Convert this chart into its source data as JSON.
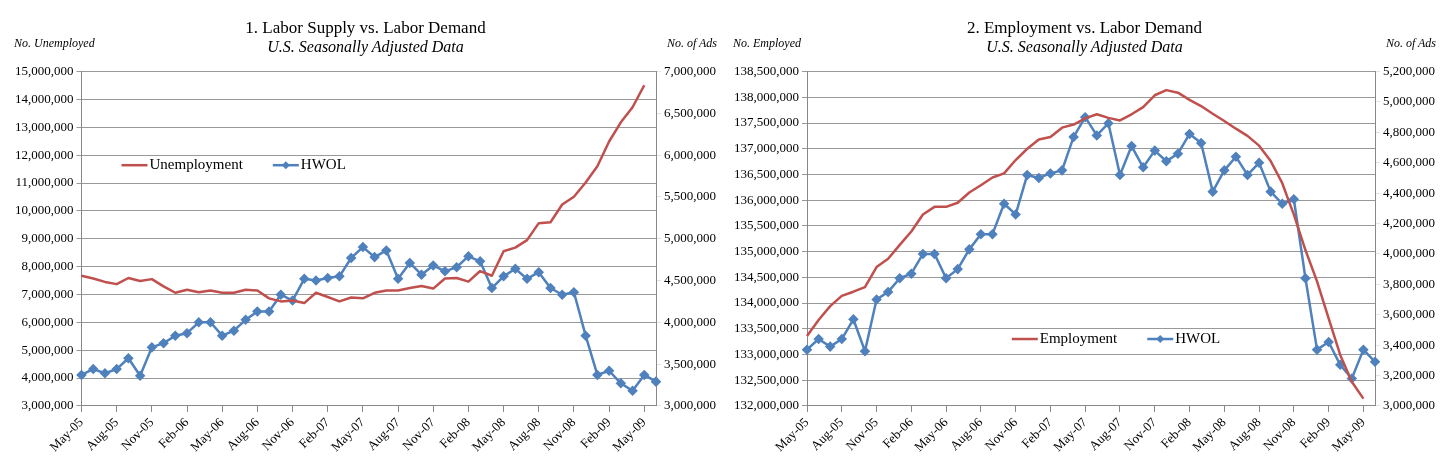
{
  "chart_data": [
    {
      "type": "line",
      "title": "1. Labor Supply vs. Labor Demand",
      "subtitle": "U.S. Seasonally Adjusted Data",
      "ylabel": "No. Unemployed",
      "y2label": "No. of Ads",
      "categories": [
        "May-05",
        null,
        null,
        "Aug-05",
        null,
        null,
        "Nov-05",
        null,
        null,
        "Feb-06",
        null,
        null,
        "May-06",
        null,
        null,
        "Aug-06",
        null,
        null,
        "Nov-06",
        null,
        null,
        "Feb-07",
        null,
        null,
        "May-07",
        null,
        null,
        "Aug-07",
        null,
        null,
        "Nov-07",
        null,
        null,
        "Feb-08",
        null,
        null,
        "May-08",
        null,
        null,
        "Aug-08",
        null,
        null,
        "Nov-08",
        null,
        null,
        "Feb-09",
        null,
        null,
        "May-09",
        null
      ],
      "series": [
        {
          "name": "Unemployment",
          "color": "#c0504d",
          "marker": "none",
          "values": [
            7670000,
            7570000,
            7450000,
            7370000,
            7590000,
            7480000,
            7550000,
            7290000,
            7060000,
            7170000,
            7080000,
            7140000,
            7060000,
            7060000,
            7170000,
            7140000,
            6860000,
            6750000,
            6780000,
            6690000,
            7060000,
            6910000,
            6750000,
            6890000,
            6860000,
            7060000,
            7140000,
            7140000,
            7230000,
            7300000,
            7210000,
            7570000,
            7590000,
            7460000,
            7840000,
            7670000,
            8550000,
            8680000,
            8950000,
            9560000,
            9590000,
            10230000,
            10510000,
            11020000,
            11600000,
            12490000,
            13180000,
            13720000,
            14510000,
            null
          ]
        },
        {
          "name": "HWOL",
          "color": "#4f81bd",
          "marker": "diamond",
          "axis": "y2",
          "values": [
            3370000,
            3440000,
            3390000,
            3440000,
            3570000,
            3360000,
            3700000,
            3750000,
            3840000,
            3870000,
            4000000,
            4000000,
            3840000,
            3900000,
            4030000,
            4130000,
            4130000,
            4330000,
            4260000,
            4520000,
            4500000,
            4530000,
            4550000,
            4770000,
            4900000,
            4780000,
            4860000,
            4520000,
            4710000,
            4570000,
            4680000,
            4610000,
            4660000,
            4790000,
            4730000,
            4410000,
            4550000,
            4640000,
            4520000,
            4600000,
            4410000,
            4330000,
            4360000,
            3840000,
            3370000,
            3420000,
            3270000,
            3180000,
            3370000,
            3290000
          ]
        }
      ],
      "ylim": [
        3000000,
        15000000
      ],
      "yticks": [
        {
          "value": 3000000,
          "label": "3,000,000"
        },
        {
          "value": 4000000,
          "label": "4,000,000"
        },
        {
          "value": 5000000,
          "label": "5,000,000"
        },
        {
          "value": 6000000,
          "label": "6,000,000"
        },
        {
          "value": 7000000,
          "label": "7,000,000"
        },
        {
          "value": 8000000,
          "label": "8,000,000"
        },
        {
          "value": 9000000,
          "label": "9,000,000"
        },
        {
          "value": 10000000,
          "label": "10,000,000"
        },
        {
          "value": 11000000,
          "label": "11,000,000"
        },
        {
          "value": 12000000,
          "label": "12,000,000"
        },
        {
          "value": 13000000,
          "label": "13,000,000"
        },
        {
          "value": 14000000,
          "label": "14,000,000"
        },
        {
          "value": 15000000,
          "label": "15,000,000"
        }
      ],
      "y2lim": [
        3000000,
        7000000
      ],
      "y2ticks": [
        {
          "value": 3000000,
          "label": "3,000,000"
        },
        {
          "value": 3500000,
          "label": "3,500,000"
        },
        {
          "value": 4000000,
          "label": "4,000,000"
        },
        {
          "value": 4500000,
          "label": "4,500,000"
        },
        {
          "value": 5000000,
          "label": "5,000,000"
        },
        {
          "value": 5500000,
          "label": "5,500,000"
        },
        {
          "value": 6000000,
          "label": "6,000,000"
        },
        {
          "value": 6500000,
          "label": "6,500,000"
        },
        {
          "value": 7000000,
          "label": "7,000,000"
        }
      ],
      "grid": "y",
      "legend": "left",
      "line_style": "solid"
    },
    {
      "type": "line",
      "title": "2. Employment vs. Labor Demand",
      "subtitle": "U.S. Seasonally Adjusted Data",
      "ylabel": "No. Employed",
      "y2label": "No. of Ads",
      "categories": [
        "May-05",
        null,
        null,
        "Aug-05",
        null,
        null,
        "Nov-05",
        null,
        null,
        "Feb-06",
        null,
        null,
        "May-06",
        null,
        null,
        "Aug-06",
        null,
        null,
        "Nov-06",
        null,
        null,
        "Feb-07",
        null,
        null,
        "May-07",
        null,
        null,
        "Aug-07",
        null,
        null,
        "Nov-07",
        null,
        null,
        "Feb-08",
        null,
        null,
        "May-08",
        null,
        null,
        "Aug-08",
        null,
        null,
        "Nov-08",
        null,
        null,
        "Feb-09",
        null,
        null,
        "May-09",
        null
      ],
      "series": [
        {
          "name": "Employment",
          "color": "#c0504d",
          "marker": "none",
          "values": [
            133360000,
            133670000,
            133940000,
            134140000,
            134220000,
            134310000,
            134700000,
            134860000,
            135130000,
            135390000,
            135720000,
            135870000,
            135870000,
            135950000,
            136150000,
            136290000,
            136440000,
            136520000,
            136780000,
            137000000,
            137180000,
            137230000,
            137410000,
            137470000,
            137590000,
            137670000,
            137600000,
            137550000,
            137670000,
            137810000,
            138040000,
            138140000,
            138090000,
            137950000,
            137830000,
            137680000,
            137540000,
            137390000,
            137250000,
            137060000,
            136760000,
            136330000,
            135720000,
            135030000,
            134420000,
            133700000,
            132990000,
            132470000,
            132140000,
            null
          ]
        },
        {
          "name": "HWOL",
          "color": "#4f81bd",
          "marker": "diamond",
          "axis": "y2",
          "values": [
            3370000,
            3440000,
            3390000,
            3440000,
            3570000,
            3360000,
            3700000,
            3750000,
            3840000,
            3870000,
            4000000,
            4000000,
            3840000,
            3900000,
            4030000,
            4130000,
            4130000,
            4330000,
            4260000,
            4520000,
            4500000,
            4530000,
            4550000,
            4770000,
            4900000,
            4780000,
            4860000,
            4520000,
            4710000,
            4570000,
            4680000,
            4610000,
            4660000,
            4790000,
            4730000,
            4410000,
            4550000,
            4640000,
            4520000,
            4600000,
            4410000,
            4330000,
            4360000,
            3840000,
            3370000,
            3420000,
            3270000,
            3180000,
            3370000,
            3290000
          ]
        }
      ],
      "ylim": [
        132000000,
        138500000
      ],
      "yticks": [
        {
          "value": 132000000,
          "label": "132,000,000"
        },
        {
          "value": 132500000,
          "label": "132,500,000"
        },
        {
          "value": 133000000,
          "label": "133,000,000"
        },
        {
          "value": 133500000,
          "label": "133,500,000"
        },
        {
          "value": 134000000,
          "label": "134,000,000"
        },
        {
          "value": 134500000,
          "label": "134,500,000"
        },
        {
          "value": 135000000,
          "label": "135,000,000"
        },
        {
          "value": 135500000,
          "label": "135,500,000"
        },
        {
          "value": 136000000,
          "label": "136,000,000"
        },
        {
          "value": 136500000,
          "label": "136,500,000"
        },
        {
          "value": 137000000,
          "label": "137,000,000"
        },
        {
          "value": 137500000,
          "label": "137,500,000"
        },
        {
          "value": 138000000,
          "label": "138,000,000"
        },
        {
          "value": 138500000,
          "label": "138,500,000"
        }
      ],
      "y2lim": [
        3000000,
        5200000
      ],
      "y2ticks": [
        {
          "value": 3000000,
          "label": "3,000,000"
        },
        {
          "value": 3200000,
          "label": "3,200,000"
        },
        {
          "value": 3400000,
          "label": "3,400,000"
        },
        {
          "value": 3600000,
          "label": "3,600,000"
        },
        {
          "value": 3800000,
          "label": "3,800,000"
        },
        {
          "value": 4000000,
          "label": "4,000,000"
        },
        {
          "value": 4200000,
          "label": "4,200,000"
        },
        {
          "value": 4400000,
          "label": "4,400,000"
        },
        {
          "value": 4600000,
          "label": "4,600,000"
        },
        {
          "value": 4800000,
          "label": "4,800,000"
        },
        {
          "value": 5000000,
          "label": "5,000,000"
        },
        {
          "value": 5200000,
          "label": "5,200,000"
        }
      ],
      "grid": "y",
      "legend": "bottom",
      "line_style": "solid"
    }
  ]
}
